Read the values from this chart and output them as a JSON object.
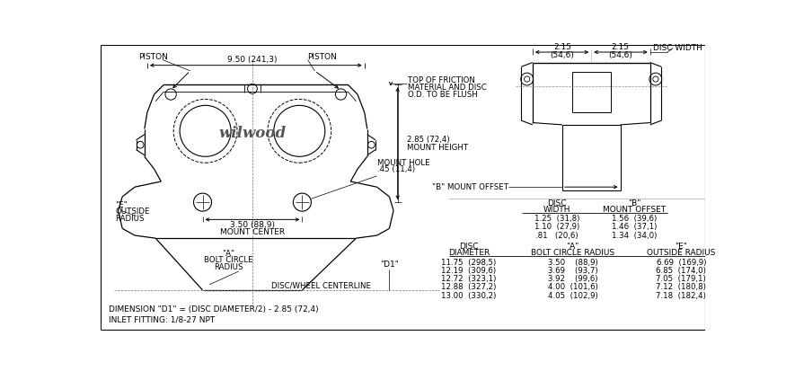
{
  "bg_color": "#ffffff",
  "line_color": "#000000",
  "text_color": "#000000",
  "table1": {
    "rows": [
      [
        "1.25  (31,8)",
        "1.56  (39,6)"
      ],
      [
        "1.10  (27,9)",
        "1.46  (37,1)"
      ],
      [
        ".81   (20,6)",
        "1.34  (34,0)"
      ]
    ]
  },
  "table2": {
    "rows": [
      [
        "11.75  (298,5)",
        "3.50    (88,9)",
        "6.69  (169,9)"
      ],
      [
        "12.19  (309,6)",
        "3.69    (93,7)",
        "6.85  (174,0)"
      ],
      [
        "12.72  (323,1)",
        "3.92    (99,6)",
        "7.05  (179,1)"
      ],
      [
        "12.88  (327,2)",
        "4.00  (101,6)",
        "7.12  (180,8)"
      ],
      [
        "13.00  (330,2)",
        "4.05  (102,9)",
        "7.18  (182,4)"
      ]
    ]
  }
}
